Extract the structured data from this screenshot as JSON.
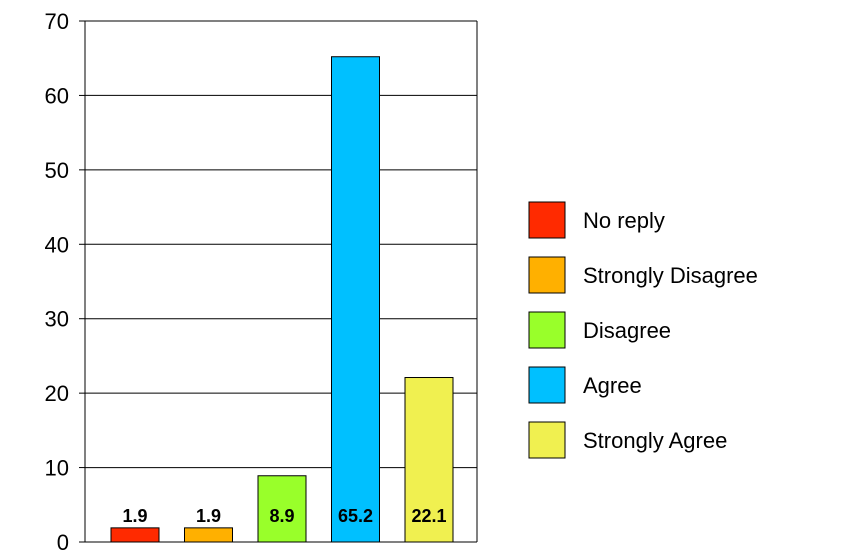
{
  "chart_data": {
    "type": "bar",
    "title": "",
    "xlabel": "",
    "ylabel": "",
    "ylim": [
      0,
      70
    ],
    "yticks": [
      0,
      10,
      20,
      30,
      40,
      50,
      60,
      70
    ],
    "grid": true,
    "legend_position": "right",
    "categories": [
      "No reply",
      "Strongly Disagree",
      "Disagree",
      "Agree",
      "Strongly Agree"
    ],
    "values": [
      1.9,
      1.9,
      8.9,
      65.2,
      22.1
    ],
    "data_labels": [
      "1.9",
      "1.9",
      "8.9",
      "65.2",
      "22.1"
    ],
    "colors": [
      "#ff2a00",
      "#ffb000",
      "#99ff2a",
      "#00c0ff",
      "#f0f050"
    ]
  }
}
